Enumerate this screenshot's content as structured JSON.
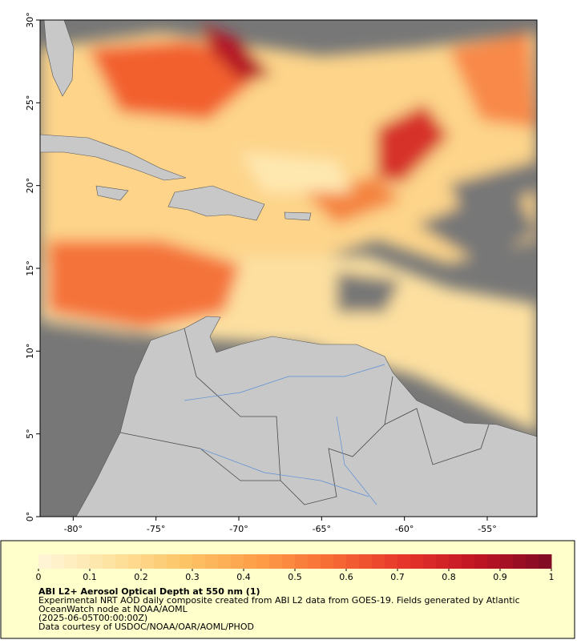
{
  "map": {
    "xlim": [
      -82,
      -52
    ],
    "ylim": [
      0,
      30
    ],
    "xticks": [
      {
        "value": -80,
        "label": "-80°"
      },
      {
        "value": -75,
        "label": "-75°"
      },
      {
        "value": -70,
        "label": "-70°"
      },
      {
        "value": -65,
        "label": "-65°"
      },
      {
        "value": -60,
        "label": "-60°"
      },
      {
        "value": -55,
        "label": "-55°"
      }
    ],
    "yticks": [
      {
        "value": 0,
        "label": "0°"
      },
      {
        "value": 5,
        "label": "5°"
      },
      {
        "value": 10,
        "label": "10°"
      },
      {
        "value": 15,
        "label": "15°"
      },
      {
        "value": 20,
        "label": "20°"
      },
      {
        "value": 25,
        "label": "25°"
      },
      {
        "value": 30,
        "label": "30°"
      }
    ]
  },
  "colorbar": {
    "lim": [
      0,
      1
    ],
    "ticks": [
      0,
      0.1,
      0.2,
      0.3,
      0.4,
      0.5,
      0.6,
      0.7,
      0.8,
      0.9,
      1
    ],
    "colormap": [
      "#fff6d8",
      "#fee3a0",
      "#fdc466",
      "#fd9e48",
      "#f76b34",
      "#e6342a",
      "#bf1424",
      "#7d0a24"
    ]
  },
  "caption": {
    "title": "ABI L2+ Aerosol Optical Depth at 550 nm (1)",
    "line1": "Experimental NRT AOD daily composite created from ABI L2 data from GOES-19. Fields generated by Atlantic",
    "line2": "OceanWatch node at NOAA/AOML",
    "line3": "(2025-06-05T00:00:00Z)",
    "line4": "Data courtesy of USDOC/NOAA/OAR/AOML/PHOD"
  }
}
